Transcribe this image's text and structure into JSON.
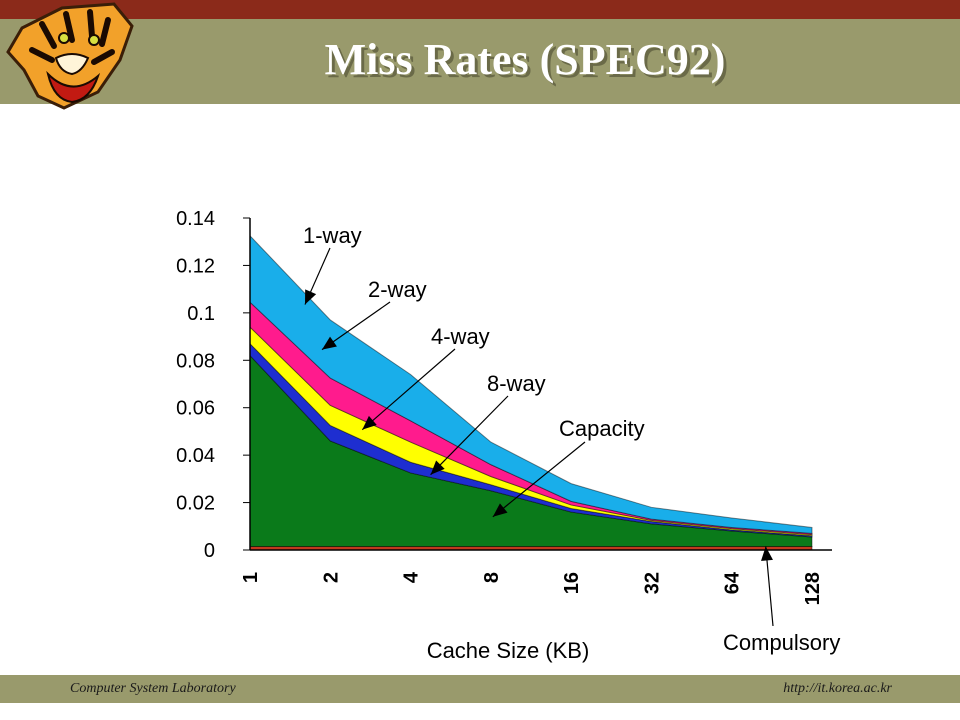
{
  "slide": {
    "title": "Miss Rates (SPEC92)",
    "footer_left": "Computer System Laboratory",
    "footer_right": "http://it.korea.ac.kr"
  },
  "colors": {
    "top_bar": "#8b2a1a",
    "band": "#999a6c"
  },
  "chart_data": {
    "type": "area",
    "stacked": true,
    "xlabel": "Cache Size (KB)",
    "ylabel": "",
    "title": "",
    "categories": [
      "1",
      "2",
      "4",
      "8",
      "16",
      "32",
      "64",
      "128"
    ],
    "ylim": [
      0,
      0.14
    ],
    "yticks": [
      "0",
      "0.02",
      "0.04",
      "0.06",
      "0.08",
      "0.1",
      "0.12",
      "0.14"
    ],
    "series": [
      {
        "name": "Compulsory",
        "color": "#c0391e",
        "values": [
          0.0015,
          0.0015,
          0.0015,
          0.0015,
          0.0015,
          0.0015,
          0.0015,
          0.0015
        ]
      },
      {
        "name": "Capacity",
        "color": "#0a7a1a",
        "values": [
          0.0805,
          0.0445,
          0.031,
          0.0235,
          0.0145,
          0.0095,
          0.0065,
          0.004
        ]
      },
      {
        "name": "8-way",
        "color": "#1e2ed0",
        "values": [
          0.005,
          0.0065,
          0.0045,
          0.0025,
          0.0015,
          0.001,
          0.0005,
          0.0005
        ]
      },
      {
        "name": "4-way",
        "color": "#ffff00",
        "values": [
          0.007,
          0.0085,
          0.0085,
          0.0035,
          0.0015,
          0.0005,
          0.0005,
          0.0005
        ]
      },
      {
        "name": "2-way",
        "color": "#ff1b8d",
        "values": [
          0.0105,
          0.0115,
          0.009,
          0.005,
          0.0015,
          0.0005,
          0.0005,
          0.0005
        ]
      },
      {
        "name": "1-way",
        "color": "#19aeea",
        "values": [
          0.028,
          0.0245,
          0.0195,
          0.0095,
          0.0075,
          0.005,
          0.004,
          0.0025
        ]
      }
    ],
    "annotations": [
      "1-way",
      "2-way",
      "4-way",
      "8-way",
      "Capacity",
      "Compulsory"
    ],
    "grid": false,
    "legend": "none"
  }
}
